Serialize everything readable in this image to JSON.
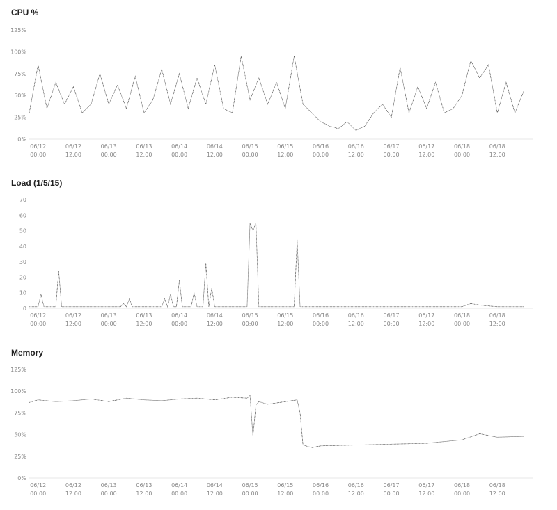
{
  "chart_data": [
    {
      "type": "line",
      "title": "CPU %",
      "xlabel": "",
      "ylabel": "",
      "ylim": [
        0,
        125
      ],
      "yticks": [
        0,
        25,
        50,
        75,
        100,
        125
      ],
      "ytick_labels": [
        "0%",
        "25%",
        "50%",
        "75%",
        "100%",
        "125%"
      ],
      "xlim": [
        "06/11 21:00",
        "06/19 00:00"
      ],
      "xticks": [
        {
          "date": "06/12",
          "time": "00:00"
        },
        {
          "date": "06/12",
          "time": "12:00"
        },
        {
          "date": "06/13",
          "time": "00:00"
        },
        {
          "date": "06/13",
          "time": "12:00"
        },
        {
          "date": "06/14",
          "time": "00:00"
        },
        {
          "date": "06/14",
          "time": "12:00"
        },
        {
          "date": "06/15",
          "time": "00:00"
        },
        {
          "date": "06/15",
          "time": "12:00"
        },
        {
          "date": "06/16",
          "time": "00:00"
        },
        {
          "date": "06/16",
          "time": "12:00"
        },
        {
          "date": "06/17",
          "time": "00:00"
        },
        {
          "date": "06/17",
          "time": "12:00"
        },
        {
          "date": "06/18",
          "time": "00:00"
        },
        {
          "date": "06/18",
          "time": "12:00"
        }
      ],
      "grid": false,
      "series": [
        {
          "color": "#555555",
          "x": [
            "06/11 21:00",
            "06/12 00:00",
            "06/12 03:00",
            "06/12 06:00",
            "06/12 09:00",
            "06/12 12:00",
            "06/12 15:00",
            "06/12 18:00",
            "06/12 21:00",
            "06/13 00:00",
            "06/13 03:00",
            "06/13 06:00",
            "06/13 09:00",
            "06/13 12:00",
            "06/13 15:00",
            "06/13 18:00",
            "06/13 21:00",
            "06/14 00:00",
            "06/14 03:00",
            "06/14 06:00",
            "06/14 09:00",
            "06/14 12:00",
            "06/14 15:00",
            "06/14 18:00",
            "06/14 21:00",
            "06/15 00:00",
            "06/15 03:00",
            "06/15 06:00",
            "06/15 09:00",
            "06/15 12:00",
            "06/15 15:00",
            "06/15 18:00",
            "06/15 21:00",
            "06/16 00:00",
            "06/16 03:00",
            "06/16 06:00",
            "06/16 09:00",
            "06/16 12:00",
            "06/16 15:00",
            "06/16 18:00",
            "06/16 21:00",
            "06/17 00:00",
            "06/17 03:00",
            "06/17 06:00",
            "06/17 09:00",
            "06/17 12:00",
            "06/17 15:00",
            "06/17 18:00",
            "06/17 21:00",
            "06/18 00:00",
            "06/18 03:00",
            "06/18 06:00",
            "06/18 09:00",
            "06/18 12:00",
            "06/18 15:00",
            "06/18 18:00",
            "06/18 21:00"
          ],
          "values": [
            30,
            85,
            35,
            65,
            40,
            60,
            30,
            40,
            75,
            40,
            62,
            35,
            72,
            30,
            45,
            80,
            40,
            75,
            35,
            70,
            40,
            85,
            35,
            30,
            95,
            45,
            70,
            40,
            65,
            35,
            95,
            40,
            30,
            20,
            15,
            12,
            20,
            10,
            15,
            30,
            40,
            25,
            82,
            30,
            60,
            35,
            65,
            30,
            35,
            50,
            90,
            70,
            85,
            30,
            65,
            30,
            55
          ]
        }
      ]
    },
    {
      "type": "line",
      "title": "Load (1/5/15)",
      "xlabel": "",
      "ylabel": "",
      "ylim": [
        0,
        70
      ],
      "yticks": [
        0,
        10,
        20,
        30,
        40,
        50,
        60,
        70
      ],
      "ytick_labels": [
        "0",
        "10",
        "20",
        "30",
        "40",
        "50",
        "60",
        "70"
      ],
      "xlim": [
        "06/11 21:00",
        "06/19 00:00"
      ],
      "xticks": [
        {
          "date": "06/12",
          "time": "00:00"
        },
        {
          "date": "06/12",
          "time": "12:00"
        },
        {
          "date": "06/13",
          "time": "00:00"
        },
        {
          "date": "06/13",
          "time": "12:00"
        },
        {
          "date": "06/14",
          "time": "00:00"
        },
        {
          "date": "06/14",
          "time": "12:00"
        },
        {
          "date": "06/15",
          "time": "00:00"
        },
        {
          "date": "06/15",
          "time": "12:00"
        },
        {
          "date": "06/16",
          "time": "00:00"
        },
        {
          "date": "06/16",
          "time": "12:00"
        },
        {
          "date": "06/17",
          "time": "00:00"
        },
        {
          "date": "06/17",
          "time": "12:00"
        },
        {
          "date": "06/18",
          "time": "00:00"
        },
        {
          "date": "06/18",
          "time": "12:00"
        }
      ],
      "grid": false,
      "series": [
        {
          "color": "#555555",
          "x": [
            "06/11 21:00",
            "06/12 00:00",
            "06/12 01:00",
            "06/12 02:00",
            "06/12 06:00",
            "06/12 07:00",
            "06/12 08:00",
            "06/12 12:00",
            "06/12 18:00",
            "06/12 23:00",
            "06/13 04:00",
            "06/13 05:00",
            "06/13 06:00",
            "06/13 07:00",
            "06/13 08:00",
            "06/13 12:00",
            "06/13 18:00",
            "06/13 19:00",
            "06/13 20:00",
            "06/13 21:00",
            "06/13 22:00",
            "06/13 23:00",
            "06/14 00:00",
            "06/14 01:00",
            "06/14 02:00",
            "06/14 03:00",
            "06/14 04:00",
            "06/14 05:00",
            "06/14 06:00",
            "06/14 08:00",
            "06/14 09:00",
            "06/14 10:00",
            "06/14 11:00",
            "06/14 12:00",
            "06/14 13:00",
            "06/14 14:00",
            "06/14 18:00",
            "06/14 23:00",
            "06/15 00:00",
            "06/15 01:00",
            "06/15 02:00",
            "06/15 03:00",
            "06/15 06:00",
            "06/15 12:00",
            "06/15 15:00",
            "06/15 16:00",
            "06/15 17:00",
            "06/15 20:00",
            "06/16 00:00",
            "06/16 12:00",
            "06/17 00:00",
            "06/17 06:00",
            "06/17 12:00",
            "06/17 18:00",
            "06/18 00:00",
            "06/18 03:00",
            "06/18 06:00",
            "06/18 12:00",
            "06/18 18:00",
            "06/18 21:00"
          ],
          "values": [
            1,
            1,
            9,
            1,
            1,
            24,
            1,
            1,
            1,
            1,
            1,
            3,
            1,
            6,
            1,
            1,
            1,
            6,
            1,
            9,
            1,
            1,
            18,
            1,
            1,
            1,
            1,
            10,
            1,
            1,
            29,
            1,
            13,
            1,
            1,
            1,
            1,
            1,
            55,
            50,
            55,
            1,
            1,
            1,
            1,
            44,
            1,
            1,
            1,
            1,
            1,
            1,
            1,
            1,
            1,
            3,
            2,
            1,
            1,
            1
          ]
        }
      ]
    },
    {
      "type": "line",
      "title": "Memory",
      "xlabel": "",
      "ylabel": "",
      "ylim": [
        0,
        125
      ],
      "yticks": [
        0,
        25,
        50,
        75,
        100,
        125
      ],
      "ytick_labels": [
        "0%",
        "25%",
        "50%",
        "75%",
        "100%",
        "125%"
      ],
      "xlim": [
        "06/11 21:00",
        "06/19 00:00"
      ],
      "xticks": [
        {
          "date": "06/12",
          "time": "00:00"
        },
        {
          "date": "06/12",
          "time": "12:00"
        },
        {
          "date": "06/13",
          "time": "00:00"
        },
        {
          "date": "06/13",
          "time": "12:00"
        },
        {
          "date": "06/14",
          "time": "00:00"
        },
        {
          "date": "06/14",
          "time": "12:00"
        },
        {
          "date": "06/15",
          "time": "00:00"
        },
        {
          "date": "06/15",
          "time": "12:00"
        },
        {
          "date": "06/16",
          "time": "00:00"
        },
        {
          "date": "06/16",
          "time": "12:00"
        },
        {
          "date": "06/17",
          "time": "00:00"
        },
        {
          "date": "06/17",
          "time": "12:00"
        },
        {
          "date": "06/18",
          "time": "00:00"
        },
        {
          "date": "06/18",
          "time": "12:00"
        }
      ],
      "grid": false,
      "series": [
        {
          "color": "#555555",
          "x": [
            "06/11 21:00",
            "06/12 00:00",
            "06/12 06:00",
            "06/12 12:00",
            "06/12 18:00",
            "06/13 00:00",
            "06/13 06:00",
            "06/13 12:00",
            "06/13 18:00",
            "06/14 00:00",
            "06/14 06:00",
            "06/14 12:00",
            "06/14 18:00",
            "06/14 23:00",
            "06/15 00:00",
            "06/15 01:00",
            "06/15 02:00",
            "06/15 03:00",
            "06/15 06:00",
            "06/15 12:00",
            "06/15 16:00",
            "06/15 17:00",
            "06/15 18:00",
            "06/15 21:00",
            "06/16 00:00",
            "06/16 12:00",
            "06/17 00:00",
            "06/17 12:00",
            "06/18 00:00",
            "06/18 06:00",
            "06/18 12:00",
            "06/18 21:00"
          ],
          "values": [
            87,
            90,
            88,
            89,
            91,
            88,
            92,
            90,
            89,
            91,
            92,
            90,
            93,
            92,
            95,
            48,
            84,
            88,
            85,
            88,
            90,
            75,
            38,
            35,
            37,
            38,
            39,
            40,
            44,
            51,
            47,
            48
          ]
        }
      ]
    }
  ]
}
